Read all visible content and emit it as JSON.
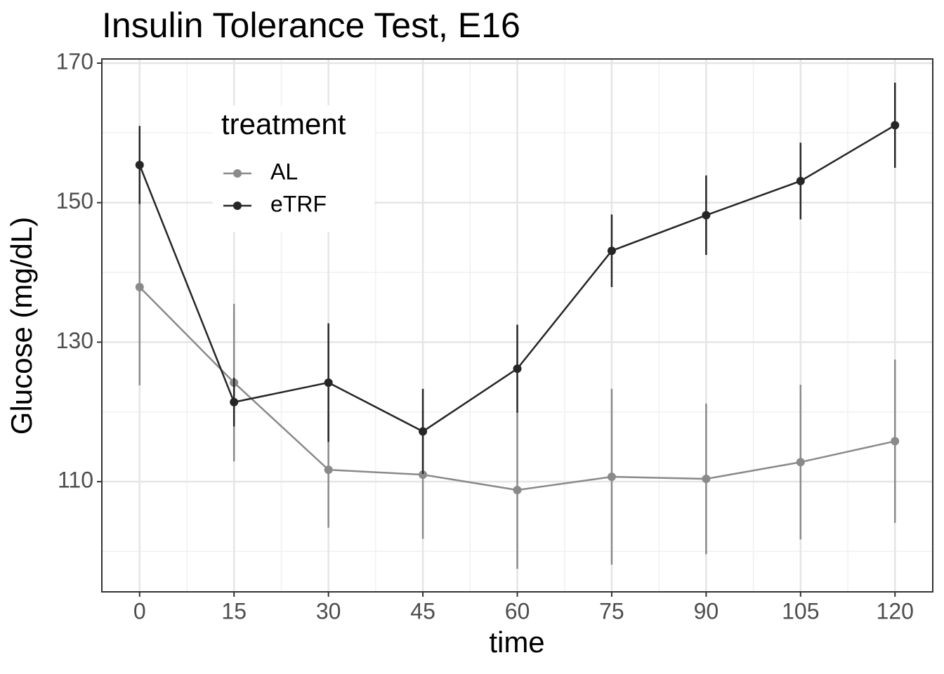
{
  "chart_data": {
    "type": "line",
    "title": "Insulin Tolerance Test, E16",
    "x_label": "time",
    "y_label": "Glucose (mg/dL)",
    "x": [
      0,
      15,
      30,
      45,
      60,
      75,
      90,
      105,
      120
    ],
    "legend_title": "treatment",
    "legend_position": "top-left",
    "series": [
      {
        "name": "AL",
        "color": "#8a8a8a",
        "values": [
          137.9,
          124.2,
          111.7,
          111.0,
          108.8,
          110.7,
          110.4,
          112.8,
          115.8
        ],
        "errors": [
          14.1,
          11.3,
          8.3,
          9.2,
          11.3,
          12.6,
          10.8,
          11.1,
          11.7
        ]
      },
      {
        "name": "eTRF",
        "color": "#262626",
        "values": [
          155.4,
          121.4,
          124.2,
          117.2,
          126.2,
          143.1,
          148.2,
          153.1,
          161.1
        ],
        "errors": [
          5.6,
          3.5,
          8.5,
          6.1,
          6.3,
          5.2,
          5.7,
          5.5,
          6.1
        ]
      }
    ],
    "xlim": [
      -6,
      126
    ],
    "ylim": [
      94.2,
      170.6
    ],
    "xticks": [
      0,
      15,
      30,
      45,
      60,
      75,
      90,
      105,
      120
    ],
    "yticks": [
      110,
      130,
      150,
      170
    ],
    "grid": true
  }
}
